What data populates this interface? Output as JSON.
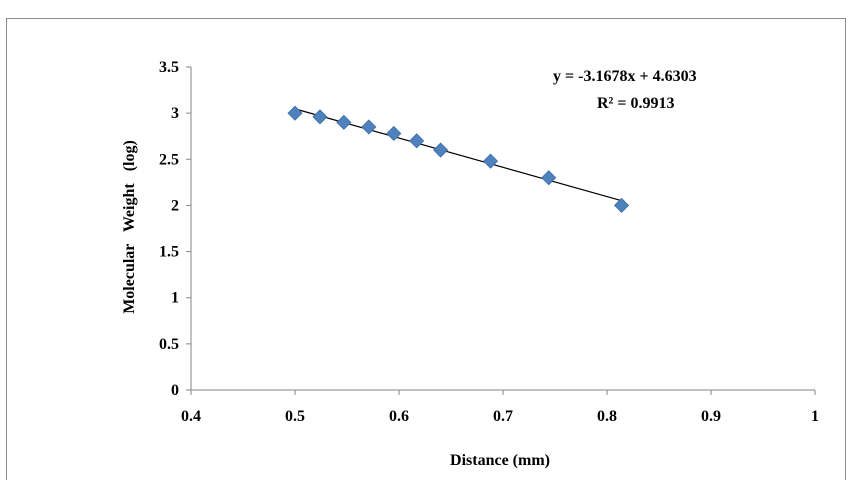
{
  "chart_data": {
    "type": "scatter",
    "xlabel": "Distance (mm)",
    "ylabel": "Molecular   Weight   (log)",
    "xlim": [
      0.4,
      1.0
    ],
    "ylim": [
      0,
      3.5
    ],
    "x_ticks": [
      "0.4",
      "0.5",
      "0.6",
      "0.7",
      "0.8",
      "0.9",
      "1"
    ],
    "y_ticks": [
      "0",
      "0.5",
      "1",
      "1.5",
      "2",
      "2.5",
      "3",
      "3.5"
    ],
    "grid": false,
    "legend": "none",
    "series": [
      {
        "marker": "diamond",
        "color": "#4f81bd",
        "points": [
          {
            "x": 0.5,
            "y": 3.0
          },
          {
            "x": 0.524,
            "y": 2.96
          },
          {
            "x": 0.547,
            "y": 2.9
          },
          {
            "x": 0.571,
            "y": 2.85
          },
          {
            "x": 0.595,
            "y": 2.78
          },
          {
            "x": 0.617,
            "y": 2.7
          },
          {
            "x": 0.64,
            "y": 2.6
          },
          {
            "x": 0.688,
            "y": 2.48
          },
          {
            "x": 0.744,
            "y": 2.3
          },
          {
            "x": 0.814,
            "y": 2.0
          }
        ]
      }
    ],
    "trendline": {
      "type": "linear",
      "slope": -3.1678,
      "intercept": 4.6303,
      "x_range": [
        0.5,
        0.814
      ],
      "color": "#000000"
    },
    "annotations": {
      "equation": "y = -3.1678x + 4.6303",
      "r_squared": "R² = 0.9913"
    }
  }
}
